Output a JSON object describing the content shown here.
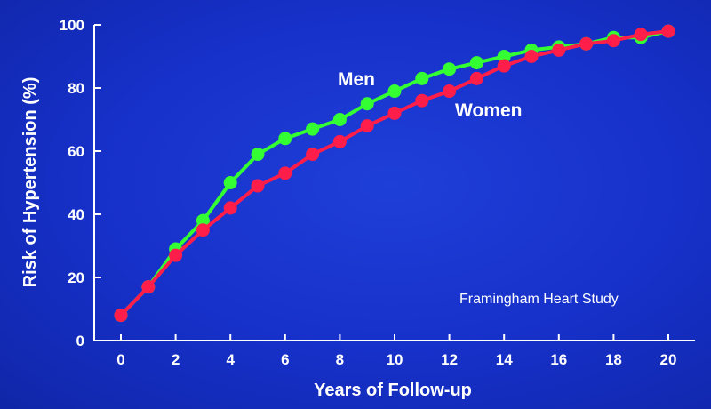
{
  "chart_data": {
    "type": "line",
    "xlabel": "Years of Follow-up",
    "ylabel": "Risk of Hypertension (%)",
    "xlim": [
      0,
      20
    ],
    "ylim": [
      0,
      100
    ],
    "x_ticks": [
      "0",
      "2",
      "4",
      "6",
      "8",
      "10",
      "12",
      "14",
      "16",
      "18",
      "20"
    ],
    "y_ticks": [
      "0",
      "20",
      "40",
      "60",
      "80",
      "100"
    ],
    "annotation": "Framingham Heart Study",
    "grid": false,
    "x": [
      0,
      1,
      2,
      3,
      4,
      5,
      6,
      7,
      8,
      9,
      10,
      11,
      12,
      13,
      14,
      15,
      16,
      17,
      18,
      19,
      20
    ],
    "series": [
      {
        "name": "Men",
        "color": "#33ff33",
        "values": [
          8,
          17,
          29,
          38,
          50,
          59,
          64,
          67,
          70,
          75,
          79,
          83,
          86,
          88,
          90,
          92,
          93,
          94,
          96,
          96,
          98
        ]
      },
      {
        "name": "Women",
        "color": "#ff1d4a",
        "values": [
          8,
          17,
          27,
          35,
          42,
          49,
          53,
          59,
          63,
          68,
          72,
          76,
          79,
          83,
          87,
          90,
          92,
          94,
          95,
          97,
          98
        ]
      }
    ]
  }
}
